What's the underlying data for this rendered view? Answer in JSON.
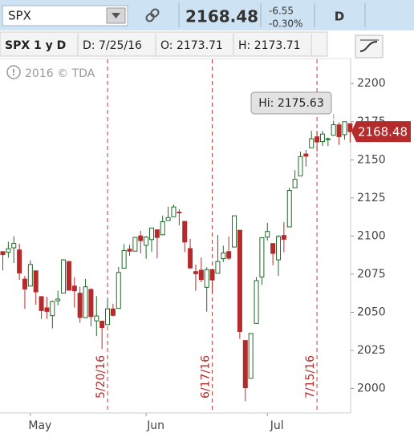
{
  "toolbar": {
    "symbol": "SPX",
    "price": "2168.48",
    "change": "-6.55",
    "change_pct": "-0.30%",
    "aggregation": "D"
  },
  "info_bar": {
    "name": "SPX 1 y D",
    "date": "D: 7/25/16",
    "open": "O: 2173.71",
    "high": "H: 2173.71"
  },
  "chart_data": {
    "type": "candlestick",
    "watermark": "2016 © TDA",
    "annotation": "Hi: 2175.63",
    "markers": [
      "5/20/16",
      "6/17/16",
      "7/15/16"
    ],
    "categories": [
      null,
      null,
      null,
      null,
      null,
      "May",
      null,
      null,
      null,
      null,
      null,
      null,
      null,
      null,
      null,
      null,
      null,
      null,
      null,
      null,
      null,
      null,
      null,
      null,
      null,
      null,
      "Jun",
      null,
      null,
      null,
      null,
      null,
      null,
      null,
      null,
      null,
      null,
      null,
      null,
      null,
      null,
      null,
      null,
      null,
      null,
      null,
      null,
      null,
      "Jul",
      null,
      null,
      null,
      null,
      null,
      null,
      null,
      null,
      null,
      null,
      null,
      null,
      null,
      null,
      null
    ],
    "open": [
      2089.8,
      2089.4,
      2092.3,
      2090.9,
      2071.8,
      2067.2,
      2077.2,
      2060.3,
      2052.9,
      2047.8,
      2057.6,
      2062.6,
      2083.3,
      2067.2,
      2062.5,
      2046.5,
      2065.0,
      2044.4,
      2044.2,
      2041.9,
      2052.2,
      2052.6,
      2078.9,
      2091.4,
      2090.1,
      2100.1,
      2093.9,
      2097.7,
      2104.1,
      2100.8,
      2110.2,
      2112.7,
      2115.7,
      2109.6,
      2091.8,
      2076.7,
      2077.6,
      2066.4,
      2078.0,
      2075.6,
      2085.2,
      2089.8,
      2092.8,
      2103.8,
      2031.5,
      2006.7,
      2042.7,
      2073.2,
      2099.3,
      2095.1,
      2084.4,
      2100.4,
      2106.0,
      2131.7,
      2139.5,
      2153.8,
      2157.9,
      2165.1,
      2162.0,
      2163.8,
      2166.1,
      2172.9,
      2166.5,
      2173.71
    ],
    "high": [
      2089.8,
      2096.3,
      2099.9,
      2094.9,
      2073.9,
      2084.0,
      2077.2,
      2060.3,
      2060.2,
      2057.7,
      2064.2,
      2084.9,
      2083.5,
      2073.0,
      2066.8,
      2071.9,
      2065.7,
      2060.6,
      2044.2,
      2058.4,
      2055.6,
      2079.7,
      2094.7,
      2094.3,
      2099.1,
      2103.5,
      2100.0,
      2105.3,
      2104.1,
      2113.4,
      2119.2,
      2120.6,
      2117.6,
      2109.6,
      2098.1,
      2081.3,
      2085.9,
      2079.6,
      2078.0,
      2100.7,
      2093.7,
      2099.7,
      2113.3,
      2103.8,
      2031.5,
      2036.1,
      2073.1,
      2098.9,
      2108.7,
      2095.1,
      2100.7,
      2109.1,
      2131.7,
      2143.2,
      2155.4,
      2156.5,
      2169.0,
      2169.1,
      2168.9,
      2164.6,
      2175.63,
      2174.6,
      2175.1,
      2173.71
    ],
    "low": [
      2077.5,
      2085.8,
      2082.3,
      2071.3,
      2052.3,
      2067.2,
      2054.9,
      2045.6,
      2045.8,
      2039.5,
      2054.6,
      2062.6,
      2064.5,
      2053.1,
      2043.1,
      2046.5,
      2040.8,
      2034.5,
      2025.9,
      2041.9,
      2047.3,
      2052.6,
      2078.9,
      2087.1,
      2090.1,
      2088.7,
      2085.1,
      2089.8,
      2085.4,
      2100.8,
      2110.2,
      2112.7,
      2107.0,
      2089.4,
      2078.5,
      2064.1,
      2069.7,
      2050.4,
      2062.8,
      2075.6,
      2083.0,
      2084.4,
      2092.8,
      2032.6,
      1991.7,
      2006.7,
      2042.7,
      2068.0,
      2097.1,
      2080.9,
      2074.0,
      2089.4,
      2106.0,
      2131.7,
      2139.5,
      2145.6,
      2157.9,
      2155.5,
      2159.1,
      2159.0,
      2166.1,
      2159.8,
      2163.2,
      2161.3
    ],
    "close": [
      2087.8,
      2091.7,
      2095.2,
      2075.8,
      2065.3,
      2081.4,
      2063.4,
      2051.1,
      2050.6,
      2057.1,
      2058.7,
      2084.4,
      2064.5,
      2064.1,
      2046.6,
      2066.7,
      2047.2,
      2047.6,
      2040.0,
      2052.3,
      2048.0,
      2076.1,
      2090.5,
      2090.1,
      2099.1,
      2097.0,
      2099.3,
      2105.3,
      2099.1,
      2109.4,
      2112.1,
      2119.1,
      2115.5,
      2096.1,
      2079.1,
      2075.3,
      2071.5,
      2078.0,
      2071.2,
      2083.3,
      2088.9,
      2085.5,
      2113.3,
      2037.4,
      2000.5,
      2036.1,
      2070.8,
      2098.9,
      2103.0,
      2088.6,
      2099.7,
      2097.9,
      2129.9,
      2137.2,
      2152.1,
      2152.4,
      2163.8,
      2161.7,
      2166.9,
      2163.8,
      2173.0,
      2165.2,
      2175.0,
      2168.48
    ],
    "up_color": "#1f6b2a",
    "down_color": "#b52a2a",
    "ylim": [
      1984,
      2218
    ],
    "yticks": [
      2000,
      2025,
      2050,
      2075,
      2100,
      2125,
      2150,
      2175,
      2200
    ]
  }
}
